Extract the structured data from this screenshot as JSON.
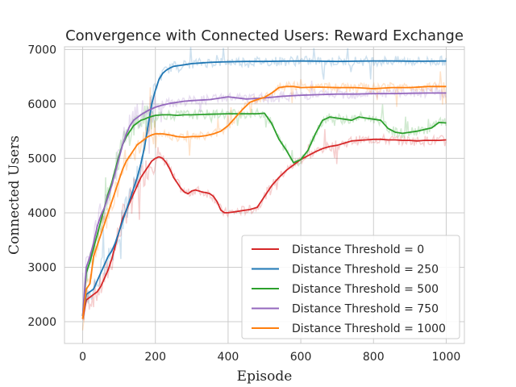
{
  "chart_data": {
    "type": "line",
    "title": "Convergence with Connected Users: Reward Exchange",
    "xlabel": "Episode",
    "ylabel": "Connected Users",
    "xlim": [
      -50,
      1050
    ],
    "ylim": [
      1600,
      7050
    ],
    "xticks": [
      0,
      200,
      400,
      600,
      800,
      1000
    ],
    "yticks": [
      2000,
      3000,
      4000,
      5000,
      6000,
      7000
    ],
    "grid": true,
    "legend_position": "bottom-right",
    "series": [
      {
        "name": "Distance Threshold = 0",
        "color": "#d62728",
        "x": [
          0,
          10,
          20,
          30,
          40,
          50,
          60,
          70,
          80,
          90,
          100,
          110,
          120,
          130,
          140,
          150,
          160,
          170,
          180,
          190,
          200,
          210,
          220,
          230,
          240,
          250,
          260,
          270,
          280,
          290,
          300,
          310,
          320,
          330,
          340,
          350,
          360,
          370,
          380,
          390,
          400,
          420,
          440,
          460,
          480,
          500,
          520,
          540,
          560,
          580,
          600,
          620,
          640,
          660,
          680,
          700,
          720,
          740,
          760,
          780,
          800,
          820,
          840,
          860,
          880,
          900,
          920,
          940,
          960,
          980,
          1000
        ],
        "y": [
          2050,
          2400,
          2450,
          2500,
          2550,
          2650,
          2800,
          2950,
          3150,
          3400,
          3650,
          3900,
          4050,
          4200,
          4350,
          4500,
          4650,
          4750,
          4850,
          4950,
          5000,
          5030,
          5000,
          4920,
          4800,
          4650,
          4550,
          4450,
          4380,
          4350,
          4400,
          4420,
          4400,
          4380,
          4370,
          4350,
          4300,
          4200,
          4050,
          4000,
          4000,
          4020,
          4040,
          4060,
          4100,
          4300,
          4500,
          4650,
          4780,
          4880,
          4980,
          5050,
          5120,
          5180,
          5220,
          5240,
          5280,
          5320,
          5330,
          5340,
          5350,
          5350,
          5340,
          5340,
          5330,
          5330,
          5320,
          5330,
          5330,
          5330,
          5340
        ]
      },
      {
        "name": "Distance Threshold = 250",
        "color": "#1f77b4",
        "x": [
          0,
          10,
          20,
          30,
          40,
          50,
          60,
          70,
          80,
          90,
          100,
          110,
          120,
          130,
          140,
          150,
          160,
          170,
          180,
          190,
          200,
          210,
          220,
          230,
          240,
          250,
          260,
          270,
          280,
          290,
          300,
          320,
          340,
          360,
          380,
          400,
          450,
          500,
          550,
          600,
          650,
          700,
          750,
          800,
          850,
          900,
          950,
          1000
        ],
        "y": [
          2100,
          2500,
          2550,
          2600,
          2750,
          2900,
          3050,
          3200,
          3300,
          3450,
          3650,
          3850,
          4050,
          4250,
          4450,
          4650,
          4900,
          5200,
          5600,
          6000,
          6250,
          6450,
          6560,
          6620,
          6660,
          6690,
          6700,
          6710,
          6720,
          6730,
          6740,
          6750,
          6760,
          6765,
          6770,
          6775,
          6780,
          6780,
          6785,
          6790,
          6785,
          6780,
          6785,
          6790,
          6790,
          6785,
          6785,
          6790
        ]
      },
      {
        "name": "Distance Threshold = 500",
        "color": "#2ca02c",
        "x": [
          0,
          10,
          20,
          30,
          40,
          50,
          60,
          70,
          80,
          90,
          100,
          110,
          120,
          130,
          140,
          150,
          160,
          170,
          180,
          190,
          200,
          220,
          240,
          260,
          280,
          300,
          350,
          400,
          450,
          480,
          500,
          520,
          540,
          560,
          580,
          600,
          620,
          640,
          660,
          680,
          700,
          720,
          740,
          760,
          780,
          800,
          820,
          840,
          860,
          880,
          900,
          920,
          940,
          960,
          980,
          1000
        ],
        "y": [
          2100,
          2900,
          3100,
          3350,
          3600,
          3850,
          4100,
          4350,
          4550,
          4800,
          5050,
          5250,
          5400,
          5500,
          5600,
          5650,
          5700,
          5720,
          5750,
          5770,
          5790,
          5800,
          5800,
          5790,
          5800,
          5800,
          5810,
          5820,
          5820,
          5820,
          5830,
          5640,
          5350,
          5150,
          4920,
          4980,
          5150,
          5450,
          5700,
          5760,
          5740,
          5720,
          5700,
          5760,
          5740,
          5720,
          5700,
          5550,
          5480,
          5460,
          5480,
          5500,
          5530,
          5560,
          5660,
          5650
        ]
      },
      {
        "name": "Distance Threshold = 750",
        "color": "#9467bd",
        "x": [
          0,
          10,
          20,
          30,
          40,
          50,
          60,
          70,
          80,
          90,
          100,
          110,
          120,
          130,
          140,
          150,
          160,
          170,
          180,
          190,
          200,
          220,
          240,
          260,
          280,
          300,
          350,
          400,
          450,
          500,
          550,
          600,
          650,
          700,
          750,
          800,
          850,
          900,
          950,
          1000
        ],
        "y": [
          2100,
          3000,
          3200,
          3450,
          3750,
          3950,
          4100,
          4300,
          4500,
          4750,
          5000,
          5250,
          5450,
          5600,
          5700,
          5750,
          5800,
          5840,
          5880,
          5910,
          5940,
          5980,
          6010,
          6030,
          6050,
          6060,
          6080,
          6130,
          6090,
          6110,
          6140,
          6160,
          6170,
          6180,
          6180,
          6190,
          6190,
          6195,
          6200,
          6200
        ]
      },
      {
        "name": "Distance Threshold = 1000",
        "color": "#ff7f0e",
        "x": [
          0,
          10,
          20,
          30,
          40,
          50,
          60,
          70,
          80,
          90,
          100,
          110,
          120,
          130,
          140,
          150,
          160,
          170,
          180,
          190,
          200,
          220,
          240,
          260,
          280,
          300,
          320,
          340,
          360,
          380,
          400,
          420,
          440,
          460,
          480,
          500,
          520,
          540,
          560,
          580,
          600,
          650,
          700,
          750,
          800,
          850,
          900,
          950,
          1000
        ],
        "y": [
          2050,
          2600,
          2700,
          3200,
          3400,
          3600,
          3800,
          4000,
          4200,
          4400,
          4600,
          4800,
          4950,
          5050,
          5150,
          5250,
          5300,
          5350,
          5400,
          5430,
          5450,
          5450,
          5430,
          5400,
          5390,
          5400,
          5400,
          5420,
          5450,
          5500,
          5600,
          5750,
          5900,
          6030,
          6080,
          6120,
          6200,
          6300,
          6320,
          6320,
          6300,
          6310,
          6300,
          6300,
          6280,
          6300,
          6300,
          6320,
          6320
        ]
      }
    ]
  }
}
